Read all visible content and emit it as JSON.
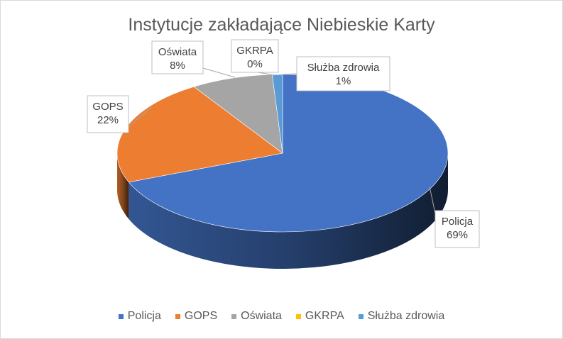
{
  "chart_data": {
    "type": "pie",
    "title": "Instytucje zakładające Niebieskie Karty",
    "categories": [
      "Policja",
      "GOPS",
      "Oświata",
      "GKRPA",
      "Służba zdrowia"
    ],
    "values": [
      69,
      22,
      8,
      0,
      1
    ],
    "data_labels": [
      "69%",
      "22%",
      "8%",
      "0%",
      "1%"
    ],
    "colors": [
      "#4472C4",
      "#ED7D31",
      "#A5A5A5",
      "#FFC000",
      "#5B9BD5"
    ],
    "legend_position": "bottom",
    "style": "3d"
  }
}
